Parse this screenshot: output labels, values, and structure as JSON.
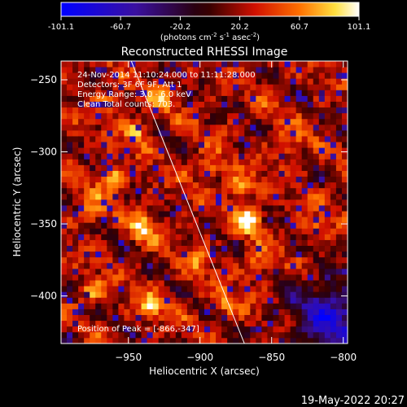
{
  "chart_data": {
    "type": "heatmap",
    "title": "Reconstructed RHESSI Image",
    "xlabel": "Heliocentric X (arcsec)",
    "ylabel": "Heliocentric Y (arcsec)",
    "xlim": [
      -997,
      -797
    ],
    "ylim": [
      -433,
      -237
    ],
    "x_ticks": [
      -950,
      -900,
      -850,
      -800
    ],
    "y_ticks": [
      -250,
      -300,
      -350,
      -400
    ],
    "colorbar": {
      "min": -101.1,
      "max": 101.1,
      "ticks": [
        "-101.1",
        "-60.7",
        "-20.2",
        "20.2",
        "60.7",
        "101.1"
      ],
      "units_text": "(photons cm",
      "units_exp1": "-2",
      "units_mid1": " s",
      "units_exp2": "-1",
      "units_mid2": " asec",
      "units_exp3": "-2",
      "units_end": ")"
    },
    "annotations": [
      "24-Nov-2014 11:10:24.000 to 11:11:28.000",
      "Detectors: 3F 6F 9F, Att 1",
      "Energy Range: 3.0 - 6.0 keV",
      "Clean    Total counts: 703."
    ],
    "peak_label": "Position of Peak = [-866,-347]",
    "peak": [
      -866,
      -347
    ],
    "limb_line": {
      "start": [
        -948,
        -237
      ],
      "end": [
        -869,
        -433
      ]
    },
    "hotspots": [
      {
        "x": -866,
        "y": -347,
        "v": 100
      },
      {
        "x": -872,
        "y": -325,
        "v": 78
      },
      {
        "x": -962,
        "y": -318,
        "v": 82
      },
      {
        "x": -940,
        "y": -353,
        "v": 76
      },
      {
        "x": -892,
        "y": -310,
        "v": 55
      },
      {
        "x": -858,
        "y": -378,
        "v": 58
      },
      {
        "x": -935,
        "y": -408,
        "v": 68
      },
      {
        "x": -927,
        "y": -262,
        "v": 60
      },
      {
        "x": -944,
        "y": -286,
        "v": 62
      },
      {
        "x": -975,
        "y": -396,
        "v": 60
      },
      {
        "x": -975,
        "y": -342,
        "v": 55
      },
      {
        "x": -902,
        "y": -375,
        "v": 55
      },
      {
        "x": -838,
        "y": -295,
        "v": 50
      },
      {
        "x": -822,
        "y": -352,
        "v": 48
      },
      {
        "x": -880,
        "y": -405,
        "v": 55
      },
      {
        "x": -965,
        "y": -265,
        "v": 52
      }
    ],
    "dark_region": {
      "x": -810,
      "y": -415,
      "v": -60
    }
  },
  "footer": {
    "timestamp": "19-May-2022 20:27"
  }
}
